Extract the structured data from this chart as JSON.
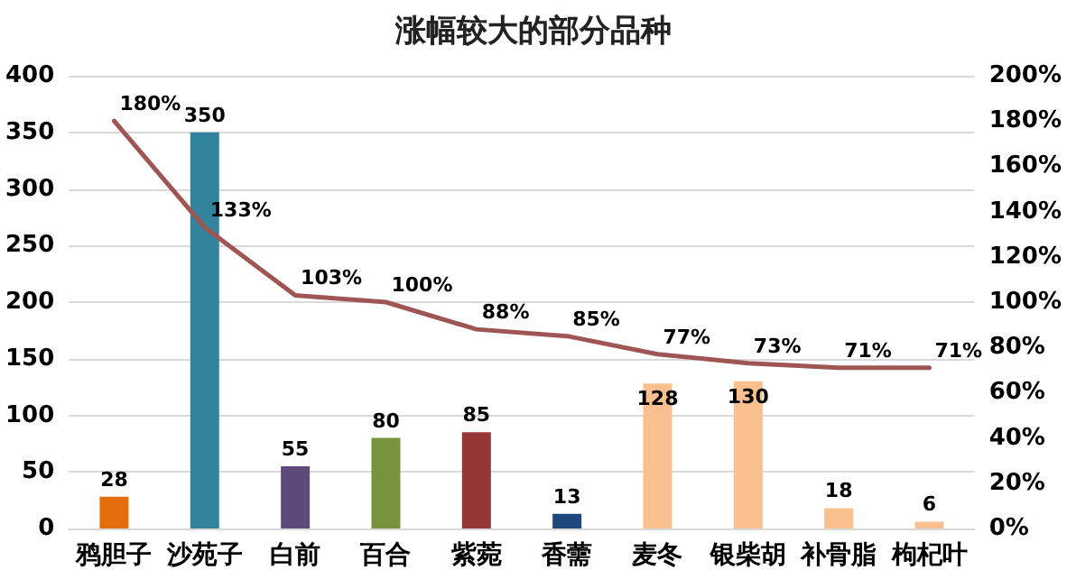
{
  "chart_data": {
    "type": "bar",
    "title": "涨幅较大的部分品种",
    "categories": [
      "鸦胆子",
      "沙苑子",
      "白前",
      "百合",
      "紫菀",
      "香薷",
      "麦冬",
      "银柴胡",
      "补骨脂",
      "枸杞叶"
    ],
    "series": [
      {
        "colors": [
          "#e46c0a",
          "#31849b",
          "#604a7b",
          "#77933c",
          "#953735",
          "#1f497d",
          "#fac090",
          "#fac090",
          "#fac090",
          "#fac090"
        ],
        "values": [
          28,
          350,
          55,
          80,
          85,
          13,
          128,
          130,
          18,
          6
        ],
        "value_labels": [
          "28",
          "350",
          "55",
          "80",
          "85",
          "13",
          "128",
          "130",
          "18",
          "6"
        ]
      },
      {
        "type": "line",
        "axis": "y2",
        "color": "#a05555",
        "values": [
          180,
          133,
          103,
          100,
          88,
          85,
          77,
          73,
          71,
          71
        ],
        "value_labels": [
          "180%",
          "133%",
          "103%",
          "100%",
          "88%",
          "85%",
          "77%",
          "73%",
          "71%",
          "71%"
        ]
      }
    ],
    "ylim": [
      0,
      400
    ],
    "yticks": [
      0,
      50,
      100,
      150,
      200,
      250,
      300,
      350,
      400
    ],
    "y2lim": [
      0,
      200
    ],
    "y2ticks": [
      {
        "value": 0,
        "label": "0%"
      },
      {
        "value": 20,
        "label": "20%"
      },
      {
        "value": 40,
        "label": "40%"
      },
      {
        "value": 60,
        "label": "60%"
      },
      {
        "value": 80,
        "label": "80%"
      },
      {
        "value": 100,
        "label": "100%"
      },
      {
        "value": 120,
        "label": "120%"
      },
      {
        "value": 140,
        "label": "140%"
      },
      {
        "value": 160,
        "label": "160%"
      },
      {
        "value": 180,
        "label": "180%"
      },
      {
        "value": 200,
        "label": "200%"
      }
    ],
    "grid": "y",
    "marker": "none"
  }
}
